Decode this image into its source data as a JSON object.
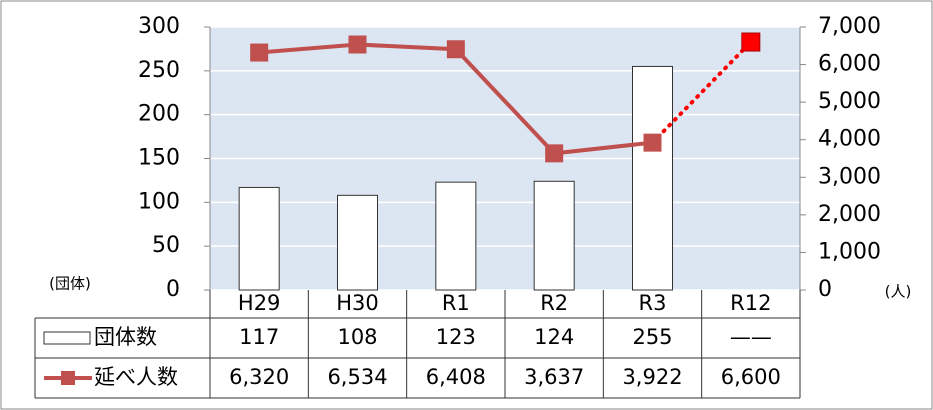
{
  "chart_data": {
    "type": "bar-line",
    "categories": [
      "H29",
      "H30",
      "R1",
      "R2",
      "R3",
      "R12"
    ],
    "series": [
      {
        "name": "団体数",
        "type": "bar",
        "color": "#ffffff",
        "values": [
          117,
          108,
          123,
          124,
          255,
          null
        ],
        "value_labels": [
          "117",
          "108",
          "123",
          "124",
          "255",
          "——"
        ]
      },
      {
        "name": "延べ人数",
        "type": "line",
        "axis": "y2",
        "color": "#c0504d",
        "projection_color": "#ff0000",
        "projection_start": 4,
        "values": [
          6320,
          6534,
          6408,
          3637,
          3922,
          6600
        ],
        "value_labels": [
          "6,320",
          "6,534",
          "6,408",
          "3,637",
          "3,922",
          "6,600"
        ]
      }
    ],
    "ylabel": "(団体)",
    "y2label": "(人)",
    "ylim": [
      0,
      300
    ],
    "yticks": [
      0,
      50,
      100,
      150,
      200,
      250,
      300
    ],
    "y2lim": [
      0,
      7000
    ],
    "y2ticks": [
      0,
      {
        "value": 1000,
        "label": "1,000"
      },
      {
        "value": 2000,
        "label": "2,000"
      },
      {
        "value": 3000,
        "label": "3,000"
      },
      {
        "value": 4000,
        "label": "4,000"
      },
      {
        "value": 5000,
        "label": "5,000"
      },
      {
        "value": 6000,
        "label": "6,000"
      },
      {
        "value": 7000,
        "label": "7,000"
      }
    ],
    "grid": true
  }
}
